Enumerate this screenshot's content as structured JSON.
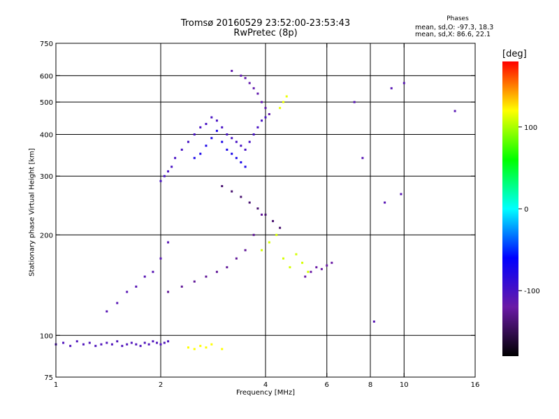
{
  "chart_data": {
    "type": "scatter",
    "title": "Tromsø 20160529 23:52:00-23:53:43",
    "subtitle": "RwPretec (8p)",
    "xlabel": "Frequency [MHz]",
    "ylabel": "Stationary phase Virtual Height [km]",
    "x_scale": "log",
    "y_scale": "log",
    "xlim": [
      1,
      16
    ],
    "ylim": [
      75,
      750
    ],
    "x_ticks": [
      "1",
      "2",
      "4",
      "6",
      "8",
      "10",
      "16"
    ],
    "x_tick_values": [
      1,
      2,
      4,
      6,
      8,
      10,
      16
    ],
    "x_grid": [
      2,
      4,
      6,
      8,
      10
    ],
    "y_ticks": [
      "75",
      "100",
      "200",
      "300",
      "400",
      "500",
      "600",
      "750"
    ],
    "y_tick_values": [
      75,
      100,
      200,
      300,
      400,
      500,
      600,
      750
    ],
    "y_grid": [
      100,
      200,
      300,
      400,
      500,
      600
    ],
    "grid": true,
    "legend": {
      "heading": "Phases",
      "mean_sd_o": "mean, sd,O: -97.3, 18.3",
      "mean_sd_x": "mean, sd,X:  86.6, 22.1",
      "position": "top-right"
    },
    "colorbar": {
      "title": "[deg]",
      "range": [
        -180,
        180
      ],
      "tick_values": [
        100,
        0,
        -100
      ],
      "tick_labels": [
        "100",
        "0",
        "-100"
      ],
      "colormap": [
        "#000000",
        "#6a1aa6",
        "#0000ff",
        "#00ffff",
        "#00ff00",
        "#ffff00",
        "#ff0000"
      ]
    },
    "series": [
      {
        "x": [
          1.0,
          1.05,
          1.1,
          1.15,
          1.2,
          1.25,
          1.3,
          1.35,
          1.4,
          1.45,
          1.5,
          1.55,
          1.6,
          1.65,
          1.7,
          1.75,
          1.8,
          1.85,
          1.9,
          1.95,
          2.0,
          2.05,
          2.1
        ],
        "y": [
          94,
          95,
          93,
          96,
          94,
          95,
          93,
          94,
          95,
          94,
          96,
          93,
          94,
          95,
          94,
          93,
          95,
          94,
          96,
          95,
          94,
          95,
          96
        ],
        "phase": -105
      },
      {
        "x": [
          1.4,
          1.5,
          1.6,
          1.7,
          1.8,
          1.9,
          2.0,
          2.1
        ],
        "y": [
          118,
          125,
          135,
          140,
          150,
          155,
          170,
          190
        ],
        "phase": -110
      },
      {
        "x": [
          2.0,
          2.05,
          2.1,
          2.15,
          2.2,
          2.3,
          2.4,
          2.5,
          2.6,
          2.7,
          2.8,
          2.9,
          3.0,
          3.1,
          3.2,
          3.3,
          3.4,
          3.5,
          3.6,
          3.7,
          3.8,
          3.9,
          4.0
        ],
        "y": [
          290,
          300,
          310,
          320,
          340,
          360,
          380,
          400,
          420,
          430,
          450,
          440,
          420,
          400,
          390,
          380,
          370,
          360,
          380,
          400,
          420,
          440,
          450
        ],
        "phase": -100
      },
      {
        "x": [
          2.5,
          2.6,
          2.7,
          2.8,
          2.9,
          3.0,
          3.1,
          3.2,
          3.3,
          3.4,
          3.5
        ],
        "y": [
          340,
          350,
          370,
          390,
          410,
          380,
          360,
          350,
          340,
          330,
          320
        ],
        "phase": -75
      },
      {
        "x": [
          3.2,
          3.4,
          3.5,
          3.6,
          3.7,
          3.8,
          3.9,
          4.0,
          4.1
        ],
        "y": [
          620,
          600,
          590,
          570,
          550,
          530,
          500,
          480,
          460
        ],
        "phase": -115
      },
      {
        "x": [
          2.1,
          2.3,
          2.5,
          2.7,
          2.9,
          3.1,
          3.3,
          3.5,
          3.7,
          3.9
        ],
        "y": [
          135,
          140,
          145,
          150,
          155,
          160,
          170,
          180,
          200,
          230
        ],
        "phase": -125
      },
      {
        "x": [
          3.0,
          3.2,
          3.4,
          3.6,
          3.8,
          4.0,
          4.2,
          4.4
        ],
        "y": [
          280,
          270,
          260,
          250,
          240,
          230,
          220,
          210
        ],
        "phase": -140
      },
      {
        "x": [
          3.9,
          4.1,
          4.3,
          4.5,
          4.7,
          4.9,
          5.1,
          5.3
        ],
        "y": [
          180,
          190,
          200,
          170,
          160,
          175,
          165,
          155
        ],
        "phase": 110
      },
      {
        "x": [
          4.4,
          4.5,
          4.6
        ],
        "y": [
          480,
          500,
          520
        ],
        "phase": 115
      },
      {
        "x": [
          2.4,
          2.5,
          2.6,
          2.7,
          2.8,
          3.0
        ],
        "y": [
          92,
          91,
          93,
          92,
          94,
          91
        ],
        "phase": 120
      },
      {
        "x": [
          5.2,
          5.4,
          5.6,
          5.8,
          6.0,
          6.2
        ],
        "y": [
          150,
          155,
          160,
          158,
          162,
          165
        ],
        "phase": -120
      },
      {
        "x": [
          7.2,
          7.6,
          8.2,
          8.8,
          9.2,
          9.8,
          10.0,
          14.0
        ],
        "y": [
          500,
          340,
          110,
          250,
          550,
          265,
          570,
          470
        ],
        "phase": -110
      }
    ]
  }
}
